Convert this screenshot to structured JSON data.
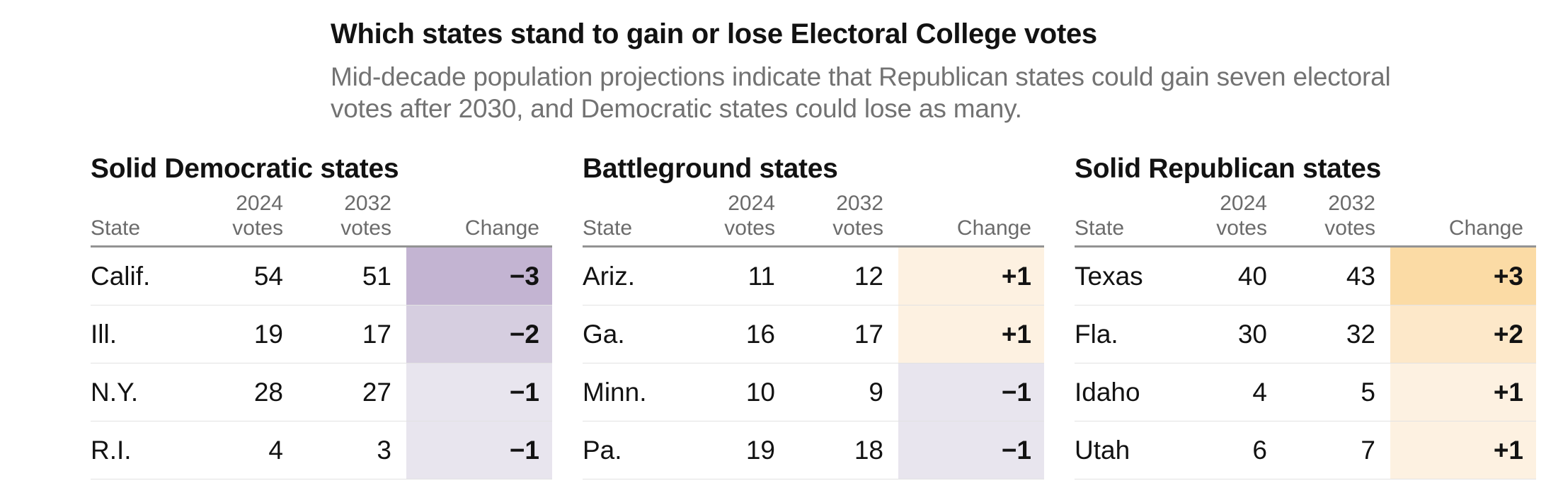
{
  "page": {
    "title": "Which states stand to gain or lose Electoral College votes",
    "subtitle_lines": [
      "Mid-decade population projections indicate that Republican states could gain seven electoral",
      "votes after 2030, and Democratic states could lose as many."
    ]
  },
  "column_headers": {
    "state": "State",
    "y2024": "2024",
    "y2032": "2032",
    "votes": "votes",
    "change": "Change"
  },
  "colors": {
    "title_text": "#121212",
    "subtitle_text": "#727272",
    "header_text": "#6b6b6b",
    "body_text": "#121212",
    "header_rule": "#939393",
    "row_border": "#e2e2e2",
    "change_scale": {
      "-3": "#c3b4d2",
      "-2": "#d6cee0",
      "-1": "#e8e5ee",
      "+1": "#fdf1e1",
      "+2": "#fde8c9",
      "+3": "#fbdba5"
    }
  },
  "tables": [
    {
      "title": "Solid Democratic states",
      "rows": [
        {
          "state": "Calif.",
          "votes_2024": "54",
          "votes_2032": "51",
          "change": "−3",
          "delta": "-3"
        },
        {
          "state": "Ill.",
          "votes_2024": "19",
          "votes_2032": "17",
          "change": "−2",
          "delta": "-2"
        },
        {
          "state": "N.Y.",
          "votes_2024": "28",
          "votes_2032": "27",
          "change": "−1",
          "delta": "-1"
        },
        {
          "state": "R.I.",
          "votes_2024": "4",
          "votes_2032": "3",
          "change": "−1",
          "delta": "-1"
        }
      ]
    },
    {
      "title": "Battleground states",
      "rows": [
        {
          "state": "Ariz.",
          "votes_2024": "11",
          "votes_2032": "12",
          "change": "+1",
          "delta": "+1"
        },
        {
          "state": "Ga.",
          "votes_2024": "16",
          "votes_2032": "17",
          "change": "+1",
          "delta": "+1"
        },
        {
          "state": "Minn.",
          "votes_2024": "10",
          "votes_2032": "9",
          "change": "−1",
          "delta": "-1"
        },
        {
          "state": "Pa.",
          "votes_2024": "19",
          "votes_2032": "18",
          "change": "−1",
          "delta": "-1"
        }
      ]
    },
    {
      "title": "Solid Republican states",
      "rows": [
        {
          "state": "Texas",
          "votes_2024": "40",
          "votes_2032": "43",
          "change": "+3",
          "delta": "+3"
        },
        {
          "state": "Fla.",
          "votes_2024": "30",
          "votes_2032": "32",
          "change": "+2",
          "delta": "+2"
        },
        {
          "state": "Idaho",
          "votes_2024": "4",
          "votes_2032": "5",
          "change": "+1",
          "delta": "+1"
        },
        {
          "state": "Utah",
          "votes_2024": "6",
          "votes_2032": "7",
          "change": "+1",
          "delta": "+1"
        }
      ]
    }
  ],
  "chart_data": {
    "type": "table",
    "title": "Which states stand to gain or lose Electoral College votes",
    "subtitle": "Mid-decade population projections indicate that Republican states could gain seven electoral votes after 2030, and Democratic states could lose as many.",
    "groups": [
      {
        "name": "Solid Democratic states",
        "columns": [
          "State",
          "2024 votes",
          "2032 votes",
          "Change"
        ],
        "rows": [
          [
            "Calif.",
            54,
            51,
            -3
          ],
          [
            "Ill.",
            19,
            17,
            -2
          ],
          [
            "N.Y.",
            28,
            27,
            -1
          ],
          [
            "R.I.",
            4,
            3,
            -1
          ]
        ]
      },
      {
        "name": "Battleground states",
        "columns": [
          "State",
          "2024 votes",
          "2032 votes",
          "Change"
        ],
        "rows": [
          [
            "Ariz.",
            11,
            12,
            1
          ],
          [
            "Ga.",
            16,
            17,
            1
          ],
          [
            "Minn.",
            10,
            9,
            -1
          ],
          [
            "Pa.",
            19,
            18,
            -1
          ]
        ]
      },
      {
        "name": "Solid Republican states",
        "columns": [
          "State",
          "2024 votes",
          "2032 votes",
          "Change"
        ],
        "rows": [
          [
            "Texas",
            40,
            43,
            3
          ],
          [
            "Fla.",
            30,
            32,
            2
          ],
          [
            "Idaho",
            4,
            5,
            1
          ],
          [
            "Utah",
            6,
            7,
            1
          ]
        ]
      }
    ],
    "layout": {
      "negative_color_scale": "purple",
      "positive_color_scale": "orange",
      "tables_side_by_side": 3
    }
  }
}
